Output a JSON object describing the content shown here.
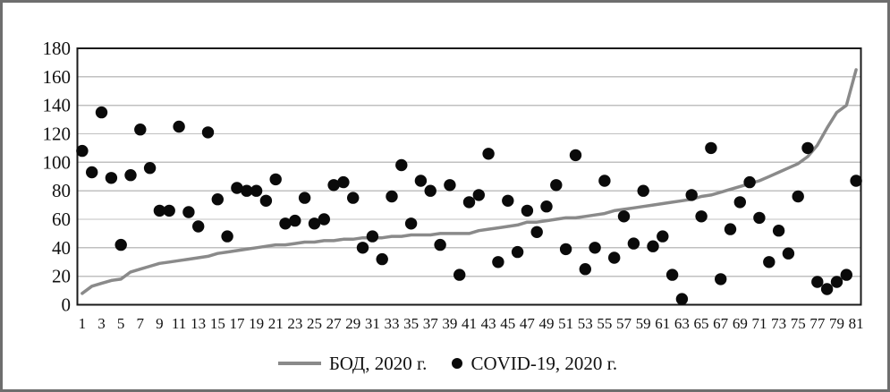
{
  "chart_data": {
    "type": "combo",
    "x": [
      1,
      2,
      3,
      4,
      5,
      6,
      7,
      8,
      9,
      10,
      11,
      12,
      13,
      14,
      15,
      16,
      17,
      18,
      19,
      20,
      21,
      22,
      23,
      24,
      25,
      26,
      27,
      28,
      29,
      30,
      31,
      32,
      33,
      34,
      35,
      36,
      37,
      38,
      39,
      40,
      41,
      42,
      43,
      44,
      45,
      46,
      47,
      48,
      49,
      50,
      51,
      52,
      53,
      54,
      55,
      56,
      57,
      58,
      59,
      60,
      61,
      62,
      63,
      64,
      65,
      66,
      67,
      68,
      69,
      70,
      71,
      72,
      73,
      74,
      75,
      76,
      77,
      78,
      79,
      80,
      81
    ],
    "x_tick_labels": [
      1,
      3,
      5,
      7,
      9,
      11,
      13,
      15,
      17,
      19,
      21,
      23,
      25,
      27,
      29,
      31,
      33,
      35,
      37,
      39,
      41,
      43,
      45,
      47,
      49,
      51,
      53,
      55,
      57,
      59,
      61,
      63,
      65,
      67,
      69,
      71,
      73,
      75,
      77,
      79,
      81
    ],
    "y_tick_labels": [
      0,
      20,
      40,
      60,
      80,
      100,
      120,
      140,
      160,
      180
    ],
    "ylim": [
      0,
      180
    ],
    "grid": "horizontal",
    "legend_position": "bottom-center",
    "series": [
      {
        "name": "БОД, 2020 г.",
        "type": "line",
        "color": "#8a8a8a",
        "values": [
          8,
          13,
          15,
          17,
          18,
          23,
          25,
          27,
          29,
          30,
          31,
          32,
          33,
          34,
          36,
          37,
          38,
          39,
          40,
          41,
          42,
          42,
          43,
          44,
          44,
          45,
          45,
          46,
          46,
          47,
          47,
          47,
          48,
          48,
          49,
          49,
          49,
          50,
          50,
          50,
          50,
          52,
          53,
          54,
          55,
          56,
          58,
          58,
          59,
          60,
          61,
          61,
          62,
          63,
          64,
          66,
          67,
          68,
          69,
          70,
          71,
          72,
          73,
          74,
          76,
          77,
          79,
          81,
          83,
          85,
          87,
          90,
          93,
          96,
          99,
          104,
          112,
          124,
          135,
          140,
          165
        ]
      },
      {
        "name": "COVID-19, 2020 г.",
        "type": "scatter",
        "color": "#0a0a0a",
        "values": [
          108,
          93,
          135,
          89,
          42,
          91,
          123,
          96,
          66,
          66,
          125,
          65,
          55,
          121,
          74,
          48,
          82,
          80,
          80,
          73,
          88,
          57,
          59,
          75,
          57,
          60,
          84,
          86,
          75,
          40,
          48,
          32,
          76,
          98,
          57,
          87,
          80,
          42,
          84,
          21,
          72,
          77,
          106,
          30,
          73,
          37,
          66,
          51,
          69,
          84,
          39,
          105,
          25,
          40,
          87,
          33,
          62,
          43,
          80,
          41,
          48,
          21,
          4,
          77,
          62,
          110,
          18,
          53,
          72,
          86,
          61,
          30,
          52,
          36,
          76,
          110,
          16,
          11,
          16,
          21,
          87
        ]
      }
    ],
    "colors": {
      "gridline": "#c0c0c0",
      "plot_border": "#1a1a1a",
      "frame_border": "#6e6e6e",
      "background": "#ffffff"
    }
  }
}
